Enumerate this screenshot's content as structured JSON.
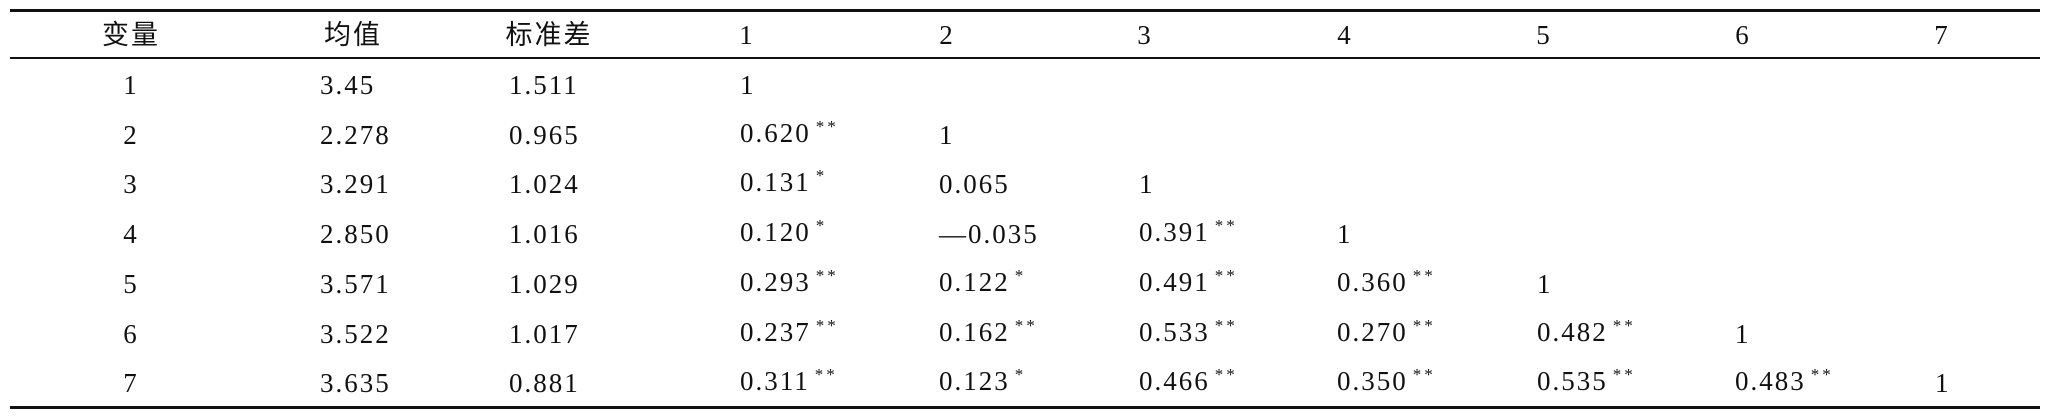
{
  "table": {
    "header": [
      "变量",
      "均值",
      "标准差",
      "1",
      "2",
      "3",
      "4",
      "5",
      "6",
      "7"
    ],
    "rows": [
      [
        "1",
        "3.45",
        "1.511",
        "1"
      ],
      [
        "2",
        "2.278",
        "0.965",
        {
          "text": "0.620",
          "sup": "**"
        },
        "1"
      ],
      [
        "3",
        "3.291",
        "1.024",
        {
          "text": "0.131",
          "sup": "*"
        },
        "0.065",
        "1"
      ],
      [
        "4",
        "2.850",
        "1.016",
        {
          "text": "0.120",
          "sup": "*"
        },
        "—0.035",
        {
          "text": "0.391",
          "sup": "**"
        },
        "1"
      ],
      [
        "5",
        "3.571",
        "1.029",
        {
          "text": "0.293",
          "sup": "**"
        },
        {
          "text": "0.122",
          "sup": "*"
        },
        {
          "text": "0.491",
          "sup": "**"
        },
        {
          "text": "0.360",
          "sup": "**"
        },
        "1"
      ],
      [
        "6",
        "3.522",
        "1.017",
        {
          "text": "0.237",
          "sup": "**"
        },
        {
          "text": "0.162",
          "sup": "**"
        },
        {
          "text": "0.533",
          "sup": "**"
        },
        {
          "text": "0.270",
          "sup": "**"
        },
        {
          "text": "0.482",
          "sup": "**"
        },
        "1"
      ],
      [
        "7",
        "3.635",
        "0.881",
        {
          "text": "0.311",
          "sup": "**"
        },
        {
          "text": "0.123",
          "sup": "*"
        },
        {
          "text": "0.466",
          "sup": "**"
        },
        {
          "text": "0.350",
          "sup": "**"
        },
        {
          "text": "0.535",
          "sup": "**"
        },
        {
          "text": "0.483",
          "sup": "**"
        },
        "1"
      ]
    ]
  }
}
